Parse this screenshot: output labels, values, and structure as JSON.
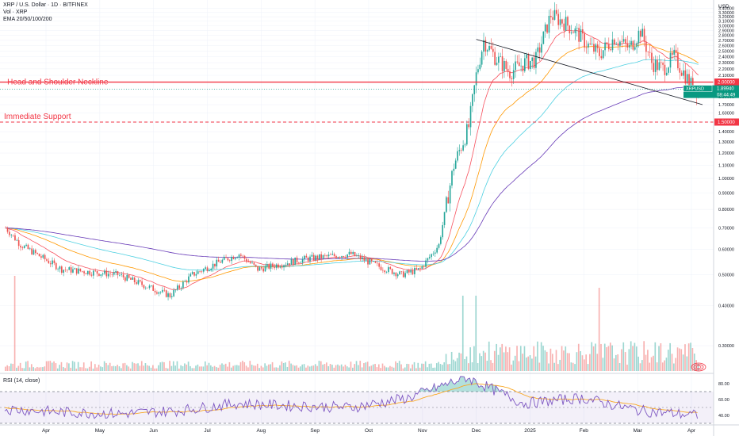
{
  "header": {
    "symbol_line": "XRP / U.S. Dollar · 1D · BITFINEX",
    "volume_line": "Vol · XRP",
    "ema_line": "EMA 20/50/100/200",
    "currency": "USD"
  },
  "annotations": {
    "neckline_label": "- Head and Shoulder Neckline",
    "support_label": "Immediate Support",
    "neckline_price_tag": "2.00000",
    "support_price_tag": "1.50000",
    "current_symbol": "XRPUSD",
    "current_price": "1.89940",
    "countdown": "08:44:49"
  },
  "colors": {
    "up": "#26a69a",
    "down": "#ef5350",
    "neckline": "#f23645",
    "ema20": "#f7525f",
    "ema50": "#ff9800",
    "ema100": "#4dd0e1",
    "ema200": "#673ab7",
    "rsi": "#7e57c2",
    "rsi_ma": "#f9a825",
    "trendline": "#131722",
    "current_tag": "#089981"
  },
  "chart_data": [
    {
      "type": "candlestick",
      "title": "XRP / U.S. Dollar · 1D · BITFINEX",
      "x_labels": [
        "Apr",
        "May",
        "Jun",
        "Jul",
        "Aug",
        "Sep",
        "Oct",
        "Nov",
        "Dec",
        "2025",
        "Feb",
        "Mar",
        "Apr"
      ],
      "y_ticks": [
        "3.40000",
        "3.30000",
        "3.20000",
        "3.10000",
        "3.00000",
        "2.90000",
        "2.80000",
        "2.70000",
        "2.60000",
        "2.50000",
        "2.40000",
        "2.30000",
        "2.20000",
        "2.10000",
        "1.90000",
        "1.80000",
        "1.70000",
        "1.60000",
        "1.50000",
        "1.40000",
        "1.30000",
        "1.20000",
        "1.10000",
        "1.00000",
        "0.90000",
        "0.80000",
        "0.70000",
        "0.60000",
        "0.50000",
        "0.40000",
        "0.30000"
      ],
      "ylim": [
        0.25,
        3.45
      ],
      "scale": "log",
      "series": [
        {
          "name": "XRP / U.S. Dollar",
          "kind": "ohlc",
          "close_path_by_month": [
            {
              "x": "Apr",
              "close": 0.62
            },
            {
              "x": "May",
              "close": 0.52
            },
            {
              "x": "Jun",
              "close": 0.5
            },
            {
              "x": "Jul",
              "close": 0.45
            },
            {
              "x": "Aug",
              "close": 0.58
            },
            {
              "x": "Sep",
              "close": 0.56
            },
            {
              "x": "Oct",
              "close": 0.54
            },
            {
              "x": "Nov",
              "close": 0.55
            },
            {
              "x": "Dec",
              "close": 2.4
            },
            {
              "x": "2025",
              "close": 2.4
            },
            {
              "x": "Feb",
              "close": 2.7
            },
            {
              "x": "Mar",
              "close": 2.3
            },
            {
              "x": "Apr",
              "close": 1.9
            }
          ]
        },
        {
          "name": "EMA 20"
        },
        {
          "name": "EMA 50"
        },
        {
          "name": "EMA 100"
        },
        {
          "name": "EMA 200"
        }
      ],
      "horizontal_levels": [
        {
          "label": "- Head and Shoulder Neckline",
          "value": 2.0
        },
        {
          "label": "Immediate Support",
          "value": 1.5
        }
      ],
      "trendline": {
        "from": {
          "x": "Dec",
          "value": 2.72
        },
        "to": {
          "x": "Apr",
          "value": 1.7
        }
      },
      "last_price": 1.8994
    },
    {
      "type": "line",
      "title": "RSI (14, close)",
      "y_ticks": [
        "80.00",
        "60.00",
        "40.00"
      ],
      "ylim": [
        30,
        90
      ],
      "bands": [
        30,
        70
      ],
      "series": [
        {
          "name": "RSI (14, close)",
          "values_by_month": [
            {
              "x": "Apr",
              "value": 48
            },
            {
              "x": "May",
              "value": 44
            },
            {
              "x": "Jun",
              "value": 42
            },
            {
              "x": "Jul",
              "value": 46
            },
            {
              "x": "Aug",
              "value": 55
            },
            {
              "x": "Sep",
              "value": 52
            },
            {
              "x": "Oct",
              "value": 50
            },
            {
              "x": "Nov",
              "value": 62
            },
            {
              "x": "Dec",
              "value": 88
            },
            {
              "x": "2025",
              "value": 55
            },
            {
              "x": "Feb",
              "value": 62
            },
            {
              "x": "Mar",
              "value": 46
            },
            {
              "x": "Apr",
              "value": 40
            }
          ]
        }
      ]
    }
  ]
}
